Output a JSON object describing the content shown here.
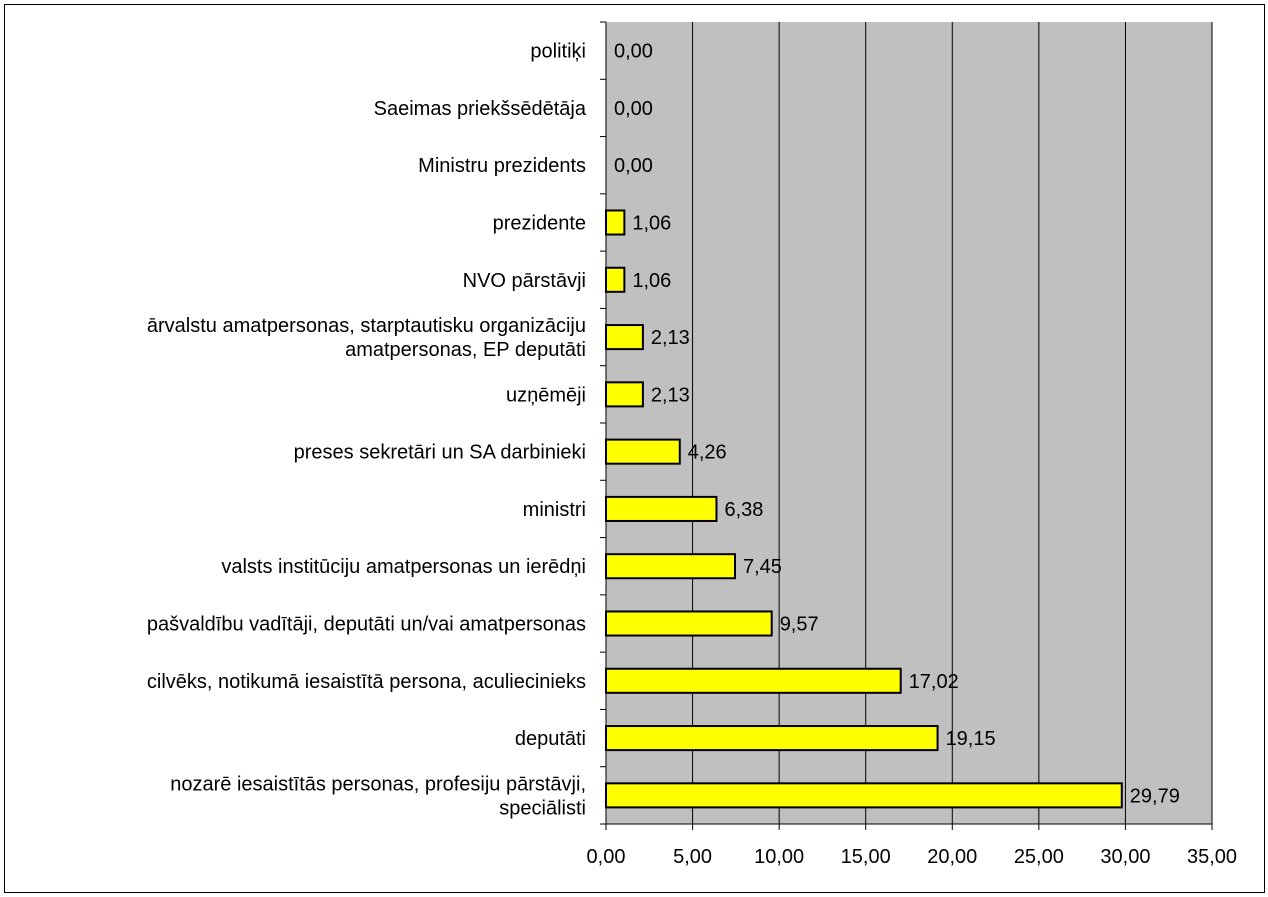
{
  "chart_data": {
    "type": "bar",
    "orientation": "horizontal",
    "title": "",
    "xlabel": "",
    "ylabel": "",
    "xlim": [
      0,
      35
    ],
    "x_ticks": [
      0,
      5,
      10,
      15,
      20,
      25,
      30,
      35
    ],
    "x_tick_labels": [
      "0,00",
      "5,00",
      "10,00",
      "15,00",
      "20,00",
      "25,00",
      "30,00",
      "35,00"
    ],
    "grid": "vertical",
    "plot_background": "#c0c0c0",
    "bar_color": "#ffff00",
    "bar_border_color": "#000000",
    "categories": [
      [
        "politiķi"
      ],
      [
        "Saeimas priekšsēdētāja"
      ],
      [
        "Ministru prezidents"
      ],
      [
        "prezidente"
      ],
      [
        "NVO pārstāvji"
      ],
      [
        "ārvalstu amatpersonas, starptautisku organizāciju",
        "amatpersonas, EP deputāti"
      ],
      [
        "uzņēmēji"
      ],
      [
        "preses sekretāri un SA darbinieki"
      ],
      [
        "ministri"
      ],
      [
        "valsts institūciju amatpersonas un ierēdņi"
      ],
      [
        "pašvaldību vadītāji, deputāti un/vai amatpersonas"
      ],
      [
        "cilvēks, notikumā iesaistītā persona, aculiecinieks"
      ],
      [
        "deputāti"
      ],
      [
        "nozarē iesaistītās personas, profesiju pārstāvji,",
        "speciālisti"
      ]
    ],
    "values": [
      0.0,
      0.0,
      0.0,
      1.06,
      1.06,
      2.13,
      2.13,
      4.26,
      6.38,
      7.45,
      9.57,
      17.02,
      19.15,
      29.79
    ],
    "value_labels": [
      "0,00",
      "0,00",
      "0,00",
      "1,06",
      "1,06",
      "2,13",
      "2,13",
      "4,26",
      "6,38",
      "7,45",
      "9,57",
      "17,02",
      "19,15",
      "29,79"
    ]
  }
}
